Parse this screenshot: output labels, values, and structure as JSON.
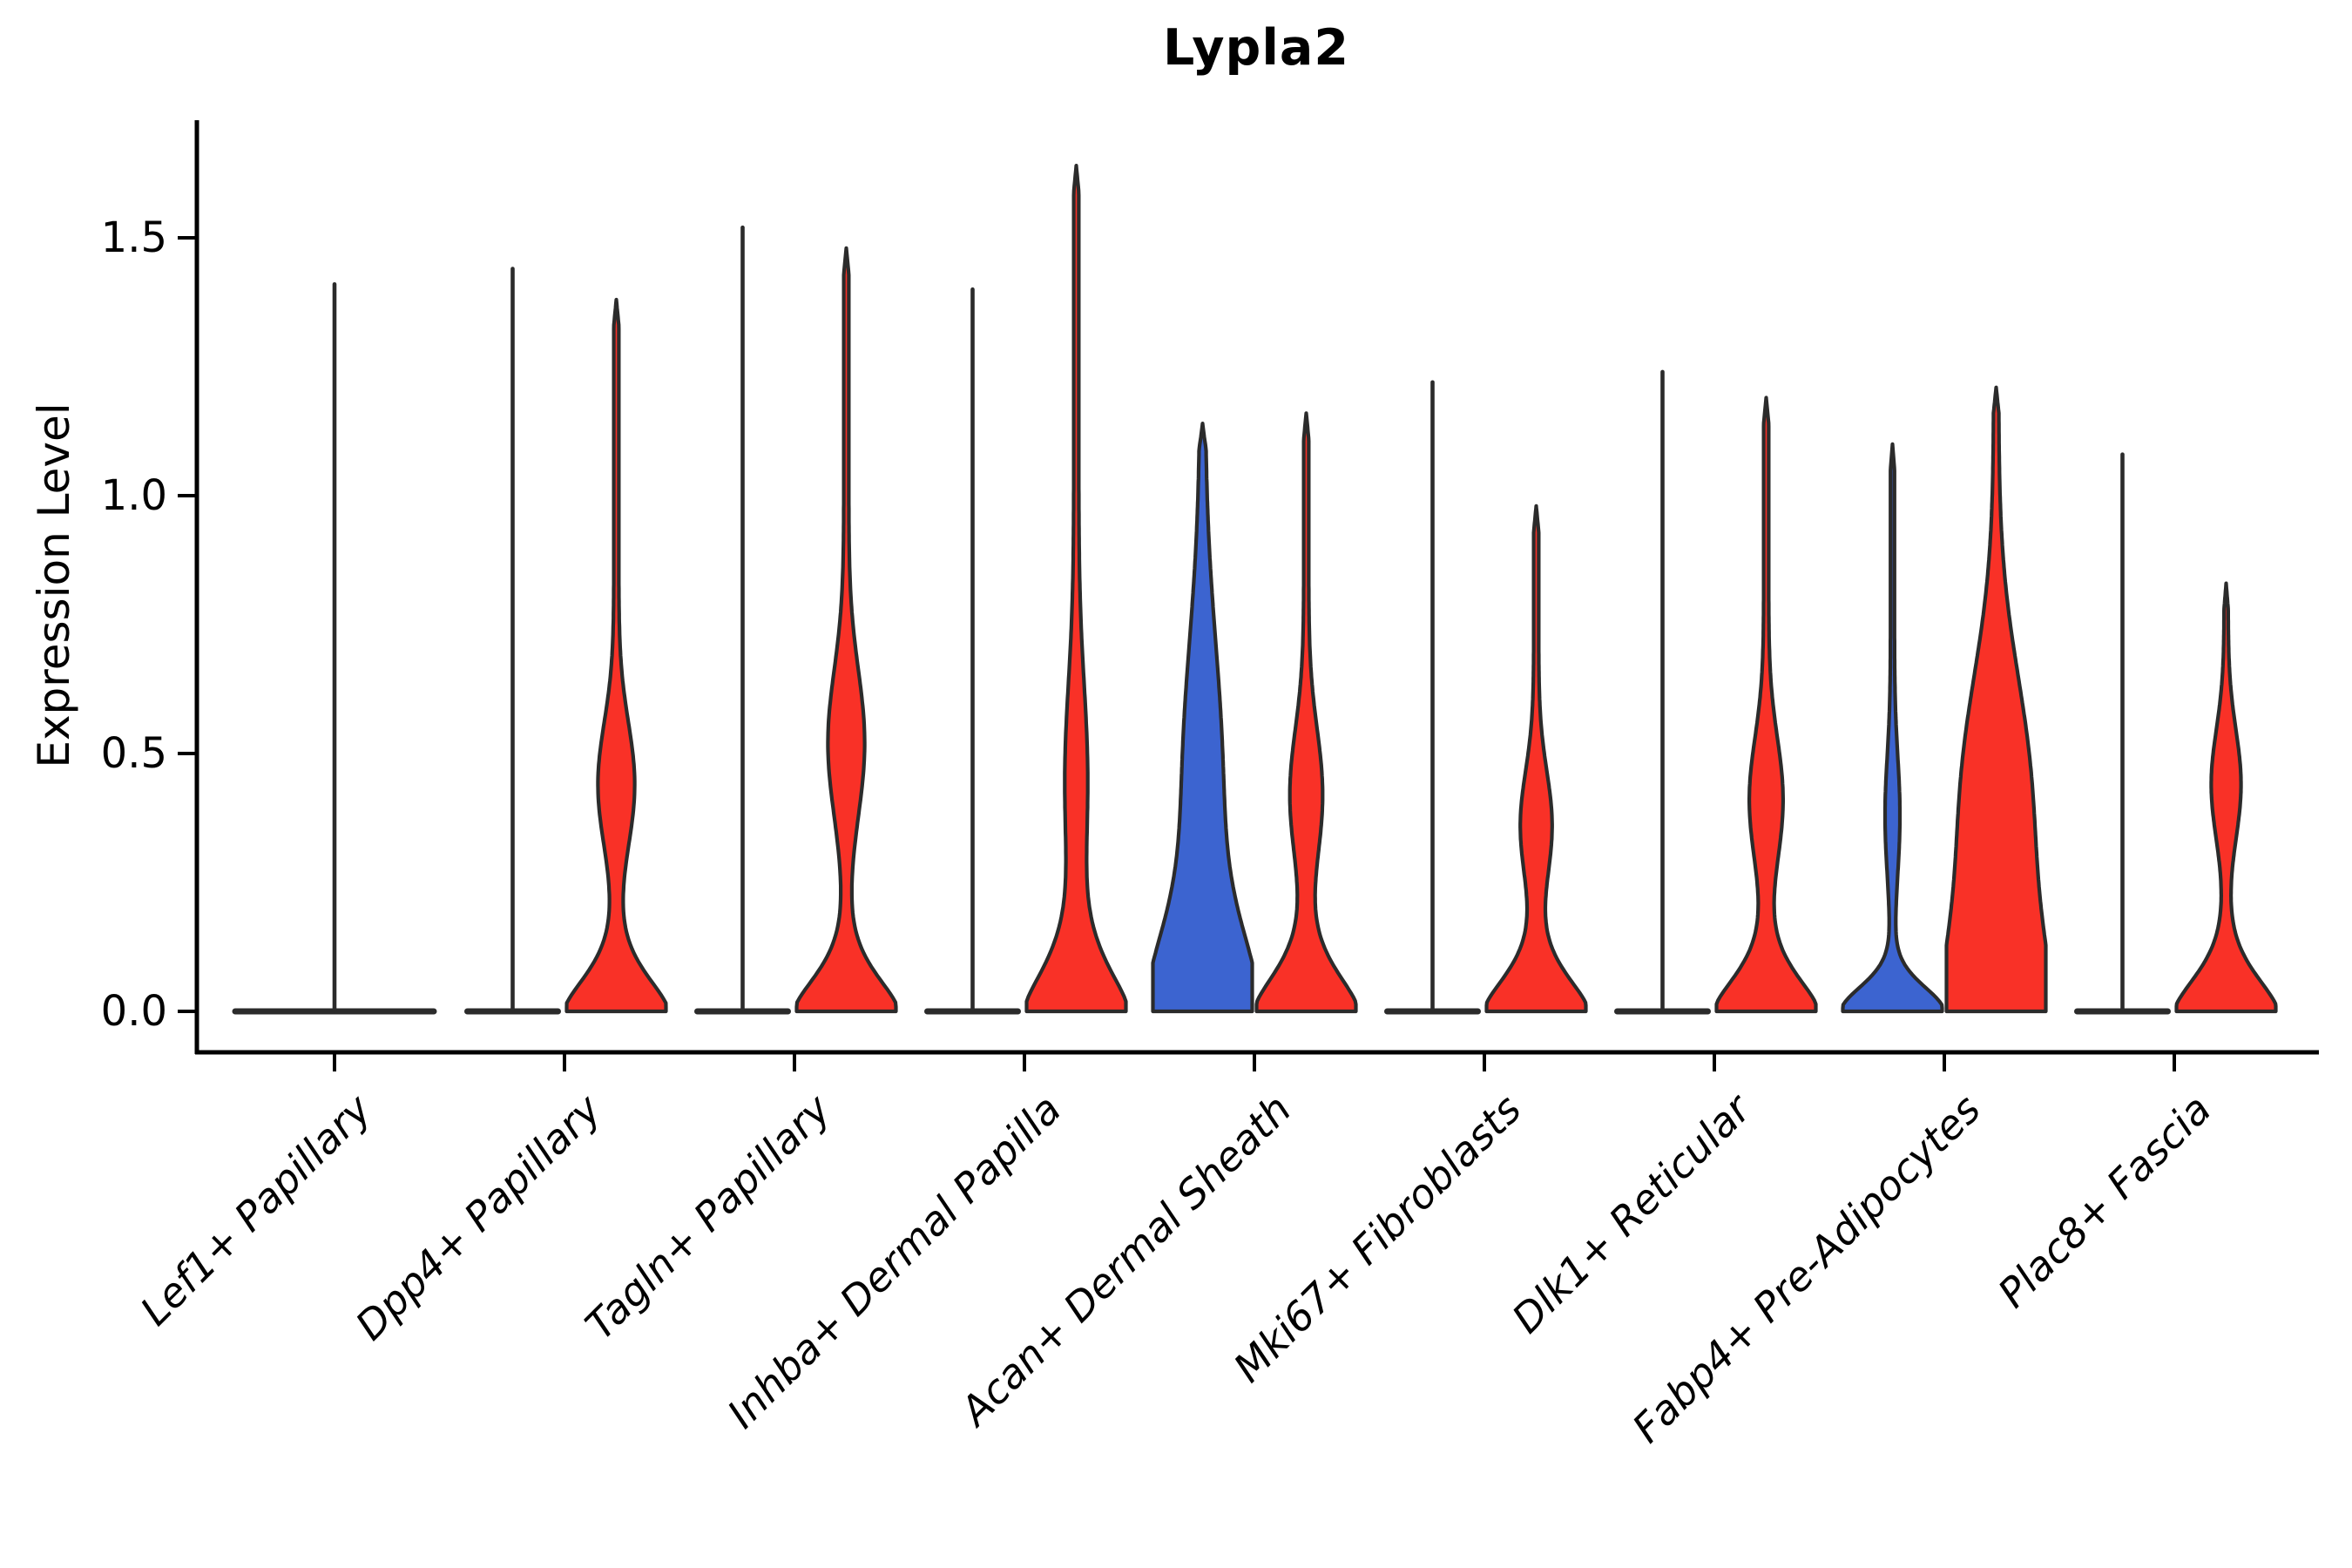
{
  "title": "Lypla2",
  "axes": {
    "y_label": "Expression Level",
    "y_tick_labels": [
      "0.0",
      "0.5",
      "1.0",
      "1.5"
    ],
    "y_tick_values": [
      0.0,
      0.5,
      1.0,
      1.5
    ]
  },
  "colors": {
    "red": "#f93127",
    "blue": "#3c64d0",
    "outline": "#2b2b2b",
    "background": "#ffffff"
  },
  "chart_data": {
    "type": "violin",
    "title": "Lypla2",
    "xlabel": "",
    "ylabel": "Expression Level",
    "ylim": [
      -0.08,
      1.72
    ],
    "yticks": [
      0.0,
      0.5,
      1.0,
      1.5
    ],
    "legend": "none",
    "grid": false,
    "split_groups_per_category": 2,
    "categories": [
      "Lef1+ Papillary",
      "Dpp4+ Papillary",
      "Tagln+ Papillary",
      "Inhba+ Dermal Papilla",
      "Acan+ Dermal Sheath",
      "Mki67+ Fibroblasts",
      "Dlk1+ Reticular",
      "Fabp4+ Pre-Adipocytes",
      "Plac8+ Fascia"
    ],
    "violins": [
      {
        "category": "Lef1+ Papillary",
        "side": "single",
        "fill": "none",
        "max": 1.41,
        "body": null,
        "note": "single double-width flat violin: all mass at 0 with thin spike to max"
      },
      {
        "category": "Dpp4+ Papillary",
        "side": "left",
        "fill": "none",
        "max": 1.44,
        "body": null
      },
      {
        "category": "Dpp4+ Papillary",
        "side": "right",
        "fill": "red",
        "max": 1.38,
        "body": {
          "amp": 0.32,
          "center": 0.44,
          "sigma": 0.17,
          "base_sigma": 0.1,
          "base_power": 1.6,
          "stem": 0.05
        }
      },
      {
        "category": "Tagln+ Papillary",
        "side": "left",
        "fill": "none",
        "max": 1.52,
        "body": null
      },
      {
        "category": "Tagln+ Papillary",
        "side": "right",
        "fill": "red",
        "max": 1.48,
        "body": {
          "amp": 0.32,
          "center": 0.52,
          "sigma": 0.2,
          "base_sigma": 0.1,
          "base_power": 1.6,
          "stem": 0.05
        }
      },
      {
        "category": "Inhba+ Dermal Papilla",
        "side": "left",
        "fill": "none",
        "max": 1.4,
        "body": null
      },
      {
        "category": "Inhba+ Dermal Papilla",
        "side": "right",
        "fill": "red",
        "max": 1.64,
        "body": {
          "amp": 0.18,
          "center": 0.45,
          "sigma": 0.26,
          "base_sigma": 0.13,
          "base_power": 1.5,
          "stem": 0.05
        }
      },
      {
        "category": "Acan+ Dermal Sheath",
        "side": "left",
        "fill": "blue",
        "max": 1.14,
        "body": {
          "amp": 0.35,
          "center": 0.45,
          "sigma": 0.38,
          "base_sigma": 0.22,
          "base_power": 1.8,
          "stem": 0.05
        }
      },
      {
        "category": "Acan+ Dermal Sheath",
        "side": "right",
        "fill": "red",
        "max": 1.16,
        "body": {
          "amp": 0.28,
          "center": 0.42,
          "sigma": 0.18,
          "base_sigma": 0.11,
          "base_power": 1.6,
          "stem": 0.05
        }
      },
      {
        "category": "Mki67+ Fibroblasts",
        "side": "left",
        "fill": "none",
        "max": 1.22,
        "body": null
      },
      {
        "category": "Mki67+ Fibroblasts",
        "side": "right",
        "fill": "red",
        "max": 0.98,
        "body": {
          "amp": 0.27,
          "center": 0.36,
          "sigma": 0.15,
          "base_sigma": 0.1,
          "base_power": 1.6,
          "stem": 0.05
        }
      },
      {
        "category": "Dlk1+ Reticular",
        "side": "left",
        "fill": "none",
        "max": 1.24,
        "body": null
      },
      {
        "category": "Dlk1+ Reticular",
        "side": "right",
        "fill": "red",
        "max": 1.19,
        "body": {
          "amp": 0.29,
          "center": 0.41,
          "sigma": 0.17,
          "base_sigma": 0.1,
          "base_power": 1.6,
          "stem": 0.05
        }
      },
      {
        "category": "Fabp4+ Pre-Adipocytes",
        "side": "left",
        "fill": "blue",
        "max": 1.1,
        "body": {
          "amp": 0.11,
          "center": 0.38,
          "sigma": 0.16,
          "base_sigma": 0.07,
          "base_power": 1.8,
          "stem": 0.04
        }
      },
      {
        "category": "Fabp4+ Pre-Adipocytes",
        "side": "right",
        "fill": "red",
        "max": 1.21,
        "body": {
          "amp": 0.55,
          "center": 0.45,
          "sigma": 0.32,
          "base_sigma": 0.28,
          "base_power": 1.6,
          "stem": 0.05
        }
      },
      {
        "category": "Plac8+ Fascia",
        "side": "left",
        "fill": "none",
        "max": 1.08,
        "body": null
      },
      {
        "category": "Plac8+ Fascia",
        "side": "right",
        "fill": "red",
        "max": 0.83,
        "body": {
          "amp": 0.26,
          "center": 0.44,
          "sigma": 0.15,
          "base_sigma": 0.1,
          "base_power": 1.6,
          "stem": 0.04
        }
      }
    ]
  }
}
